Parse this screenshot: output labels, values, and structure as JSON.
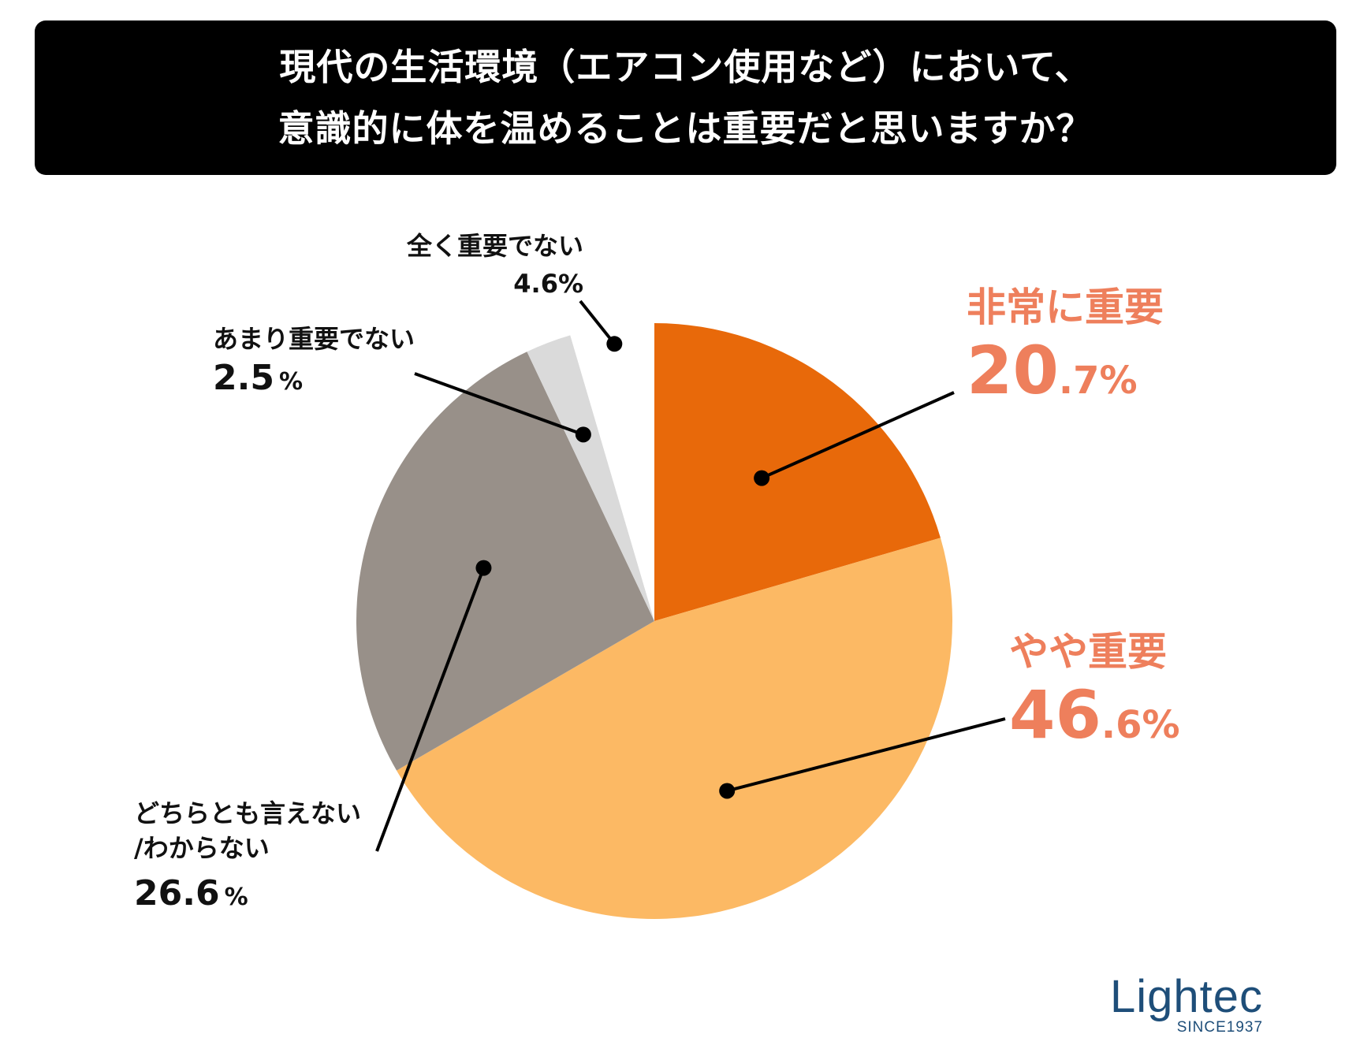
{
  "chart_data": {
    "type": "pie",
    "title_lines": [
      "現代の生活環境（エアコン使用など）において、",
      "意識的に体を温めることは重要だと思いますか？"
    ],
    "unit": "%",
    "slices": [
      {
        "label": "非常に重要",
        "value": 20.7,
        "int": "20",
        "dec": ".7",
        "pct": "%",
        "color": "#E8690A"
      },
      {
        "label": "やや重要",
        "value": 46.6,
        "int": "46",
        "dec": ".6",
        "pct": "%",
        "color": "#FCB964"
      },
      {
        "label_lines": [
          "どちらとも言えない",
          "/わからない"
        ],
        "value": 26.6,
        "display": "26.6",
        "pct": "%",
        "color": "#989089"
      },
      {
        "label": "あまり重要でない",
        "value": 2.5,
        "display": "2.5",
        "pct": "%",
        "color": "#DADADA"
      },
      {
        "label": "全く重要でない",
        "value": 4.6,
        "display": "4.6%",
        "color": "#FFFFFF"
      }
    ]
  },
  "logo": {
    "name": "Lightec",
    "tagline": "SINCE1937"
  }
}
